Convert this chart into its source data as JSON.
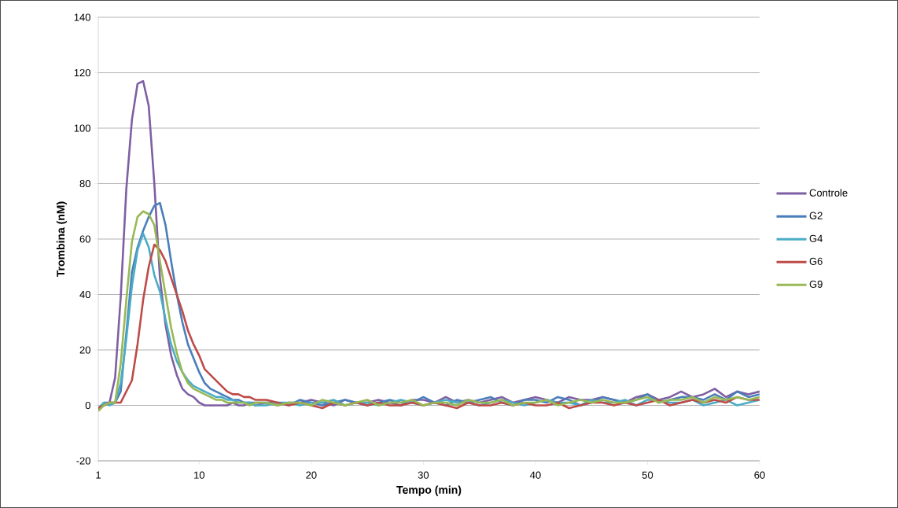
{
  "chart_data": {
    "type": "line",
    "xlabel": "Tempo (min)",
    "ylabel": "Trombina (nM)",
    "x": [
      1,
      1.5,
      2,
      2.5,
      3,
      3.5,
      4,
      4.5,
      5,
      5.5,
      6,
      6.5,
      7,
      7.5,
      8,
      8.5,
      9,
      9.5,
      10,
      10.5,
      11,
      11.5,
      12,
      12.5,
      13,
      13.5,
      14,
      14.5,
      15,
      16,
      17,
      18,
      19,
      20,
      21,
      22,
      23,
      24,
      25,
      26,
      27,
      28,
      29,
      30,
      31,
      32,
      33,
      34,
      35,
      36,
      37,
      38,
      39,
      40,
      41,
      42,
      43,
      44,
      45,
      46,
      47,
      48,
      49,
      50,
      51,
      52,
      53,
      54,
      55,
      56,
      57,
      58,
      59,
      60
    ],
    "series": [
      {
        "name": "Controle",
        "color": "#7e5fa3",
        "values": [
          -1,
          0,
          1,
          10,
          39,
          78,
          103,
          116,
          117,
          108,
          80,
          46,
          29,
          18,
          11,
          6,
          4,
          3,
          1,
          0,
          0,
          0,
          0,
          0,
          1,
          0,
          0,
          1,
          0,
          1,
          0,
          1,
          1,
          2,
          1,
          0,
          2,
          1,
          1,
          2,
          1,
          0,
          2,
          2,
          1,
          3,
          1,
          2,
          1,
          2,
          3,
          1,
          2,
          3,
          2,
          1,
          3,
          2,
          2,
          3,
          2,
          1,
          3,
          4,
          2,
          3,
          5,
          3,
          4,
          6,
          3,
          5,
          4,
          5
        ]
      },
      {
        "name": "G2",
        "color": "#4a7ebb",
        "values": [
          -2,
          1,
          1,
          1,
          5,
          26,
          48,
          57,
          63,
          68,
          72,
          73,
          65,
          52,
          40,
          30,
          22,
          17,
          12,
          8,
          6,
          5,
          4,
          3,
          2,
          2,
          1,
          1,
          1,
          1,
          1,
          0,
          2,
          1,
          0,
          1,
          2,
          1,
          0,
          1,
          2,
          1,
          1,
          3,
          1,
          0,
          2,
          1,
          2,
          3,
          1,
          0,
          2,
          2,
          1,
          3,
          2,
          0,
          1,
          3,
          2,
          1,
          2,
          4,
          1,
          2,
          3,
          3,
          2,
          4,
          2,
          5,
          3,
          4
        ]
      },
      {
        "name": "G4",
        "color": "#4bacc6",
        "values": [
          -1,
          1,
          0,
          1,
          8,
          24,
          43,
          56,
          62,
          57,
          47,
          41,
          31,
          22,
          16,
          12,
          9,
          7,
          6,
          5,
          4,
          3,
          3,
          2,
          2,
          1,
          1,
          1,
          0,
          0,
          1,
          1,
          0,
          1,
          1,
          2,
          0,
          1,
          1,
          0,
          1,
          2,
          1,
          0,
          1,
          2,
          1,
          1,
          0,
          1,
          2,
          1,
          0,
          1,
          2,
          1,
          1,
          0,
          2,
          1,
          1,
          2,
          0,
          2,
          2,
          1,
          1,
          2,
          0,
          1,
          2,
          0,
          1,
          2
        ]
      },
      {
        "name": "G6",
        "color": "#be4b48",
        "values": [
          -1,
          0,
          1,
          1,
          1,
          5,
          9,
          22,
          38,
          50,
          58,
          56,
          52,
          46,
          40,
          34,
          27,
          22,
          18,
          13,
          11,
          9,
          7,
          5,
          4,
          4,
          3,
          3,
          2,
          2,
          1,
          0,
          1,
          0,
          -1,
          1,
          0,
          1,
          0,
          1,
          0,
          0,
          1,
          0,
          1,
          0,
          -1,
          1,
          0,
          0,
          1,
          0,
          1,
          0,
          0,
          1,
          -1,
          0,
          1,
          1,
          0,
          1,
          0,
          1,
          2,
          0,
          1,
          2,
          1,
          2,
          1,
          3,
          2,
          2
        ]
      },
      {
        "name": "G9",
        "color": "#98b954",
        "values": [
          -2,
          0,
          1,
          1,
          15,
          38,
          59,
          68,
          70,
          69,
          65,
          52,
          40,
          28,
          19,
          12,
          8,
          6,
          5,
          4,
          3,
          2,
          2,
          1,
          1,
          1,
          1,
          0,
          1,
          1,
          0,
          1,
          1,
          0,
          2,
          1,
          0,
          1,
          2,
          0,
          1,
          1,
          2,
          0,
          1,
          1,
          0,
          2,
          1,
          1,
          2,
          0,
          1,
          1,
          2,
          0,
          1,
          2,
          1,
          2,
          1,
          1,
          2,
          3,
          1,
          2,
          2,
          3,
          1,
          3,
          2,
          3,
          2,
          3
        ]
      }
    ],
    "xlim": [
      1,
      60
    ],
    "xticks": [
      1,
      10,
      20,
      30,
      40,
      50,
      60
    ],
    "ylim": [
      -20,
      140
    ],
    "yticks": [
      -20,
      0,
      20,
      40,
      60,
      80,
      100,
      120,
      140
    ],
    "grid": "y",
    "legend": "right",
    "marker": "none",
    "line_style": "solid"
  }
}
